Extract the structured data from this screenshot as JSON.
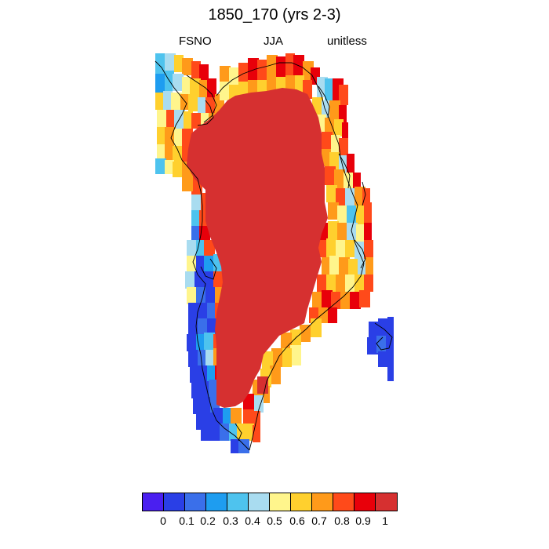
{
  "title": "1850_170 (yrs 2-3)",
  "subtitle_left": "FSNO",
  "subtitle_center": "JJA",
  "subtitle_right": "unitless",
  "colorbar": {
    "colors": [
      "#4A1FF0",
      "#2A3FE6",
      "#3A6FEA",
      "#1E9DF0",
      "#4EC3EE",
      "#A9DCF0",
      "#FFF58C",
      "#FFD02E",
      "#FF9A1A",
      "#FF4A1A",
      "#E8000A",
      "#D63030"
    ],
    "labels": [
      "0",
      "0.1",
      "0.2",
      "0.3",
      "0.4",
      "0.5",
      "0.6",
      "0.7",
      "0.8",
      "0.9",
      "1"
    ]
  }
}
